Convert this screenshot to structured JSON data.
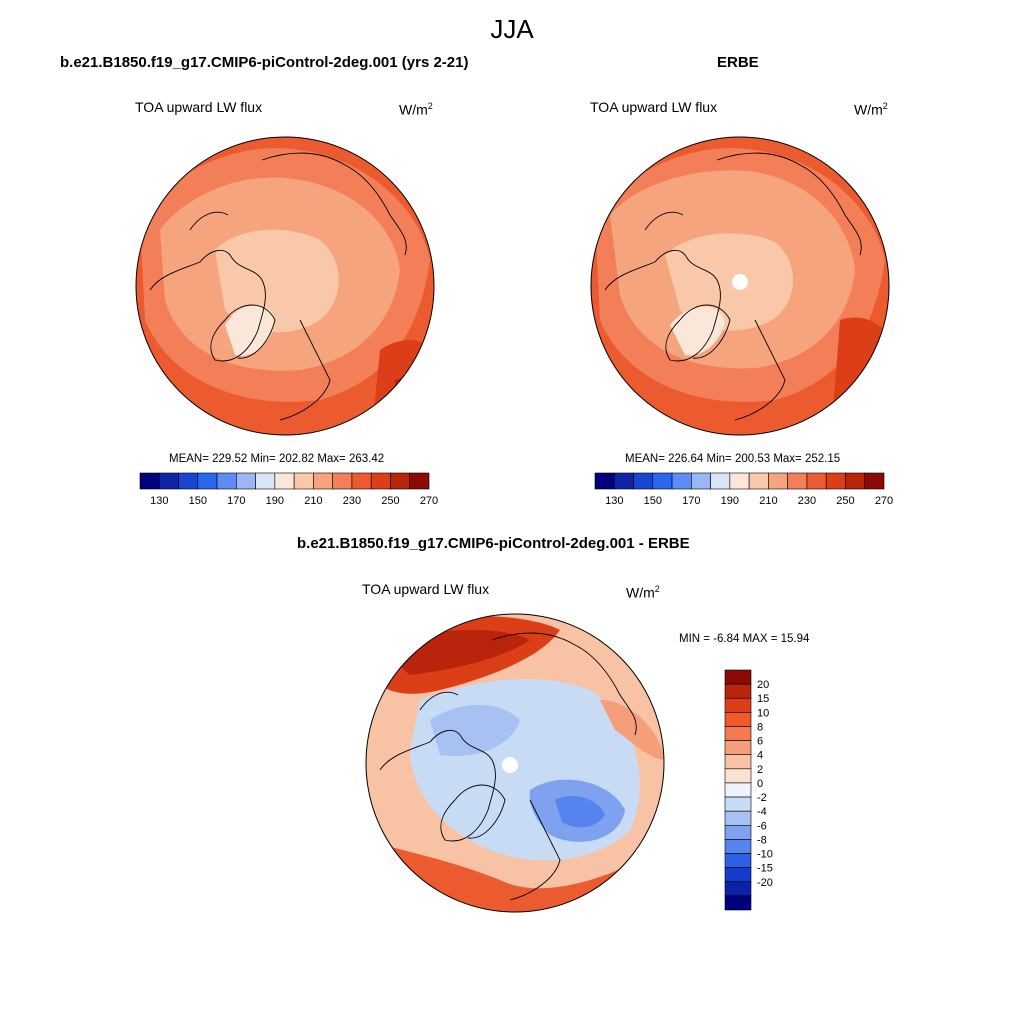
{
  "season": "JJA",
  "panels": [
    {
      "title": "b.e21.B1850.f19_g17.CMIP6-piControl-2deg.001 (yrs 2-21)",
      "variable": "TOA upward LW flux",
      "units": "W/m",
      "units_sup": "2",
      "stats": "MEAN= 229.52  Min= 202.82  Max= 263.42"
    },
    {
      "title": "ERBE",
      "variable": "TOA upward LW flux",
      "units": "W/m",
      "units_sup": "2",
      "stats": "MEAN= 226.64  Min= 200.53  Max= 252.15"
    },
    {
      "title": "b.e21.B1850.f19_g17.CMIP6-piControl-2deg.001 - ERBE",
      "variable": "TOA upward LW flux",
      "units": "W/m",
      "units_sup": "2",
      "stats": "MIN =  -6.84 MAX =  15.94"
    }
  ],
  "colorbar_abs": {
    "colors": [
      "#00007f",
      "#0f25a6",
      "#1846d3",
      "#2a66ee",
      "#5e8cf5",
      "#9cb6f5",
      "#d9e6fa",
      "#fbe7d9",
      "#f9c8a8",
      "#f6a47e",
      "#f27f58",
      "#ec5a30",
      "#dc3f18",
      "#b8240c",
      "#8b0a04"
    ],
    "labels": [
      "130",
      "150",
      "170",
      "190",
      "210",
      "230",
      "250",
      "270"
    ]
  },
  "colorbar_diff": {
    "colors": [
      "#8b0a04",
      "#b8240c",
      "#dc3f18",
      "#f05a28",
      "#f47a50",
      "#f59e7a",
      "#f8c2a4",
      "#fbe3d2",
      "#eef2fb",
      "#c8dbf5",
      "#a7c2f2",
      "#7ea2f0",
      "#5584ee",
      "#2f5fe6",
      "#163ccd",
      "#0b22a6",
      "#00007f"
    ],
    "labels": [
      "20",
      "15",
      "10",
      "8",
      "6",
      "4",
      "2",
      "0",
      "-2",
      "-4",
      "-6",
      "-8",
      "-10",
      "-15",
      "-20"
    ]
  }
}
